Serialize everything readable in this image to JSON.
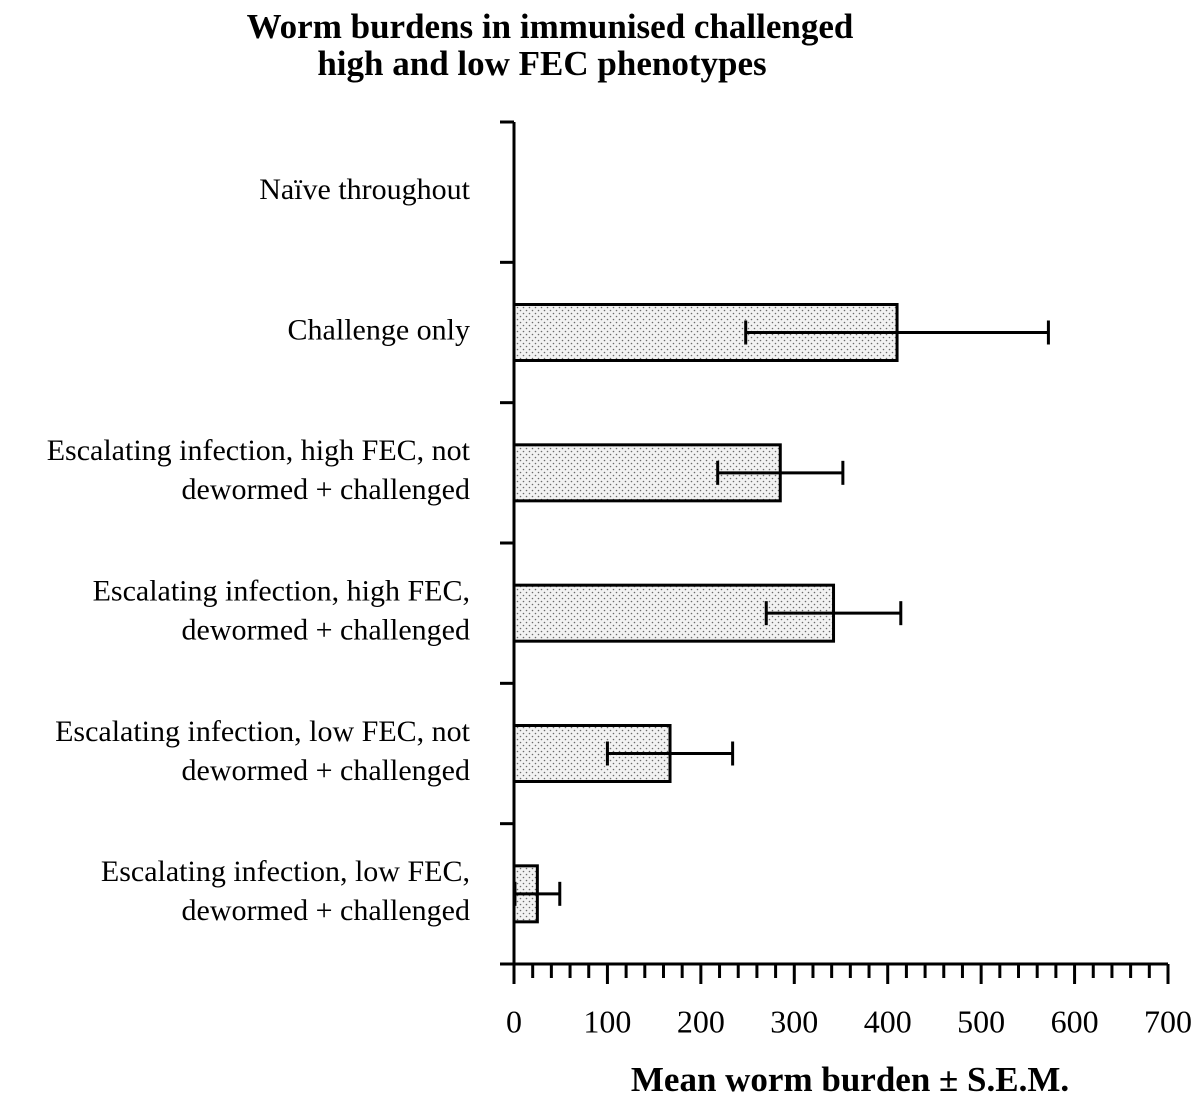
{
  "chart_data": {
    "type": "bar",
    "orientation": "horizontal",
    "title_lines": [
      "Worm burdens in immunised challenged",
      "high and low FEC phenotypes"
    ],
    "categories": [
      {
        "lines": [
          "Naïve throughout"
        ]
      },
      {
        "lines": [
          "Challenge only"
        ]
      },
      {
        "lines": [
          "Escalating infection, high FEC, not",
          "dewormed + challenged"
        ]
      },
      {
        "lines": [
          "Escalating infection, high FEC,",
          "dewormed + challenged"
        ]
      },
      {
        "lines": [
          "Escalating infection, low FEC, not",
          "dewormed + challenged"
        ]
      },
      {
        "lines": [
          "Escalating infection, low FEC,",
          "dewormed + challenged"
        ]
      }
    ],
    "values": [
      0,
      410,
      285,
      342,
      167,
      25
    ],
    "error_sem": [
      0,
      162,
      67,
      72,
      67,
      24
    ],
    "xlabel": "Mean worm burden ± S.E.M.",
    "xlim": [
      0,
      700
    ],
    "x_ticks": [
      0,
      100,
      200,
      300,
      400,
      500,
      600,
      700
    ],
    "x_minor_step": 20,
    "grid": false,
    "legend": "none",
    "bar_fill": "dotted",
    "colors": {
      "bar_background": "#f2f2f2",
      "dots": "#6b6b6b",
      "stroke": "#000000"
    }
  }
}
